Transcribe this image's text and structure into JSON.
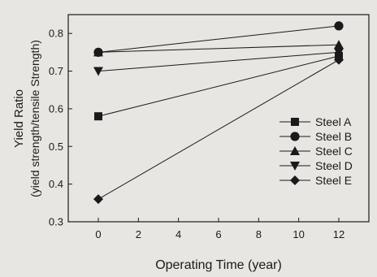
{
  "chart_data": {
    "type": "line",
    "title": "",
    "xlabel": "Operating Time (year)",
    "ylabel_line1": "Yield Ratio",
    "ylabel_line2": "(yield strength/tensile Strength)",
    "xlim": [
      -1.5,
      13.5
    ],
    "ylim": [
      0.3,
      0.85
    ],
    "xticks": [
      0,
      2,
      4,
      6,
      8,
      10,
      12
    ],
    "yticks": [
      0.3,
      0.4,
      0.5,
      0.6,
      0.7,
      0.8
    ],
    "grid": false,
    "legend_position": "lower-right",
    "series": [
      {
        "name": "Steel A",
        "marker": "square",
        "x": [
          0,
          12
        ],
        "y": [
          0.58,
          0.74
        ]
      },
      {
        "name": "Steel B",
        "marker": "circle",
        "x": [
          0,
          12
        ],
        "y": [
          0.75,
          0.82
        ]
      },
      {
        "name": "Steel C",
        "marker": "triangle-up",
        "x": [
          0,
          12
        ],
        "y": [
          0.75,
          0.77
        ]
      },
      {
        "name": "Steel D",
        "marker": "triangle-down",
        "x": [
          0,
          12
        ],
        "y": [
          0.7,
          0.75
        ]
      },
      {
        "name": "Steel E",
        "marker": "diamond",
        "x": [
          0,
          12
        ],
        "y": [
          0.36,
          0.73
        ]
      }
    ]
  }
}
